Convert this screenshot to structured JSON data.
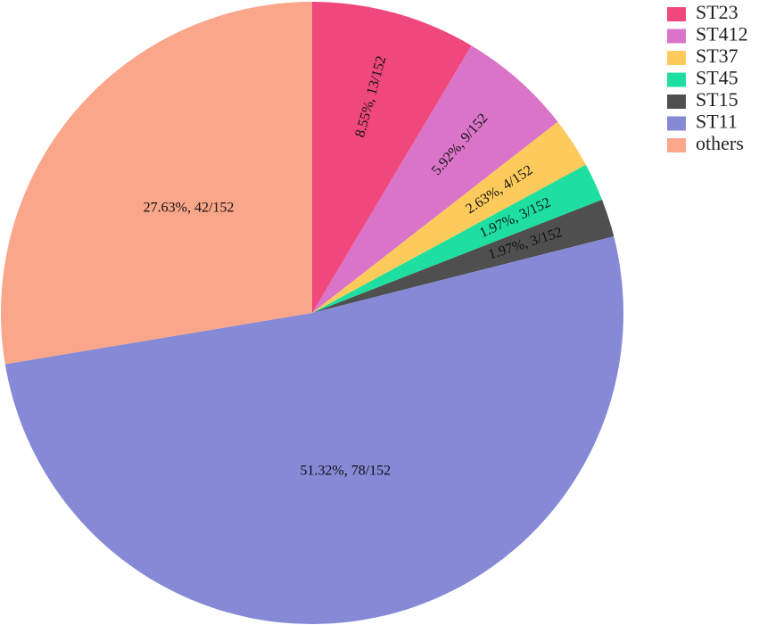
{
  "chart_data": {
    "type": "pie",
    "categories": [
      "ST23",
      "ST412",
      "ST37",
      "ST45",
      "ST15",
      "ST11",
      "others"
    ],
    "values": [
      8.55,
      5.92,
      2.63,
      1.97,
      1.97,
      51.32,
      27.63
    ],
    "value_labels": [
      "8.55%, 13/152",
      "5.92%, 9/152",
      "2.63%, 4/152",
      "1.97%, 3/152",
      "1.97%, 3/152",
      "51.32%, 78/152",
      "27.63%, 42/152"
    ],
    "colors": [
      "#f0487d",
      "#da74c8",
      "#fccb5c",
      "#1edfa0",
      "#4f4f4f",
      "#8589d6",
      "#f9a68a"
    ],
    "legend": "top-right"
  }
}
